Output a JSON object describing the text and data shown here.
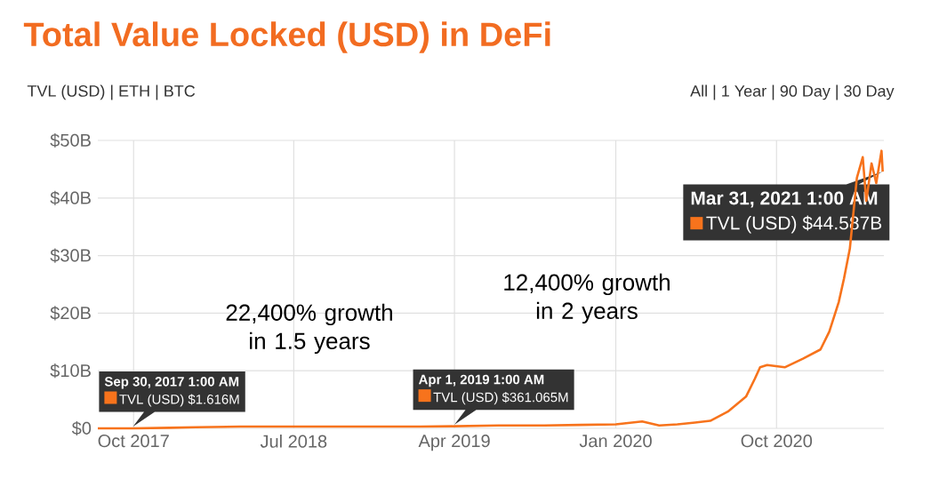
{
  "chart_data": {
    "type": "line",
    "title": "Total Value Locked (USD) in DeFi",
    "x": [
      "2017-08-01",
      "2017-09-30",
      "2017-12-01",
      "2018-01-15",
      "2018-04-01",
      "2018-07-01",
      "2018-10-01",
      "2018-12-15",
      "2019-02-01",
      "2019-04-01",
      "2019-06-15",
      "2019-09-01",
      "2019-11-01",
      "2020-01-01",
      "2020-02-15",
      "2020-03-15",
      "2020-04-15",
      "2020-05-15",
      "2020-06-10",
      "2020-07-10",
      "2020-08-10",
      "2020-08-25",
      "2020-09-03",
      "2020-09-15",
      "2020-10-15",
      "2020-11-15",
      "2020-12-15",
      "2020-12-30",
      "2021-01-15",
      "2021-01-24",
      "2021-02-03",
      "2021-02-15",
      "2021-02-25",
      "2021-03-03",
      "2021-03-12",
      "2021-03-20",
      "2021-03-29",
      "2021-03-31"
    ],
    "series": [
      {
        "color": "#f7731c",
        "values": [
          0.0,
          0.0016,
          0.1,
          0.2,
          0.3,
          0.3,
          0.3,
          0.3,
          0.3,
          0.361,
          0.5,
          0.5,
          0.6,
          0.7,
          1.2,
          0.5,
          0.7,
          1.0,
          1.3,
          2.9,
          5.5,
          8.6,
          10.6,
          11,
          10.6,
          12.1,
          13.7,
          16.8,
          21.9,
          26,
          31.2,
          43.5,
          47.1,
          39.5,
          46,
          42.6,
          48.2,
          44.587
        ]
      }
    ],
    "xlim": [
      "2017-08-01",
      "2021-04-02"
    ],
    "xticks": [
      {
        "value": "2017-10-01",
        "label": "Oct 2017"
      },
      {
        "value": "2018-07-01",
        "label": "Jul 2018"
      },
      {
        "value": "2019-04-01",
        "label": "Apr 2019"
      },
      {
        "value": "2020-01-01",
        "label": "Jan 2020"
      },
      {
        "value": "2020-10-01",
        "label": "Oct 2020"
      }
    ],
    "ylim": [
      0,
      50
    ],
    "yticks": [
      {
        "value": 0,
        "label": "$0"
      },
      {
        "value": 10,
        "label": "$10B"
      },
      {
        "value": 20,
        "label": "$20B"
      },
      {
        "value": 30,
        "label": "$30B"
      },
      {
        "value": 40,
        "label": "$40B"
      },
      {
        "value": 50,
        "label": "$50B"
      }
    ],
    "grid": true,
    "annotations": [
      "TVL (USD) | ETH | BTC",
      "All | 1 Year | 90 Day | 30 Day",
      "22,400% growth in 1.5 years",
      "12,400% growth in 2 years",
      {
        "text": "Sep 30, 2017 1:00 AM",
        "x": "2017-09-30",
        "y": 0.001616
      },
      {
        "text": "TVL (USD) $1.616M",
        "x": "2017-09-30",
        "y": 0.001616
      },
      {
        "text": "Apr 1, 2019 1:00 AM",
        "x": "2019-04-01",
        "y": 0.361065
      },
      {
        "text": "TVL (USD) $361.065M",
        "x": "2019-04-01",
        "y": 0.361065
      },
      {
        "text": "Mar 31, 2021 1:00 AM",
        "x": "2021-03-31",
        "y": 44.587
      },
      {
        "text": "TVL (USD) $44.587B",
        "x": "2021-03-31",
        "y": 44.587
      }
    ]
  }
}
